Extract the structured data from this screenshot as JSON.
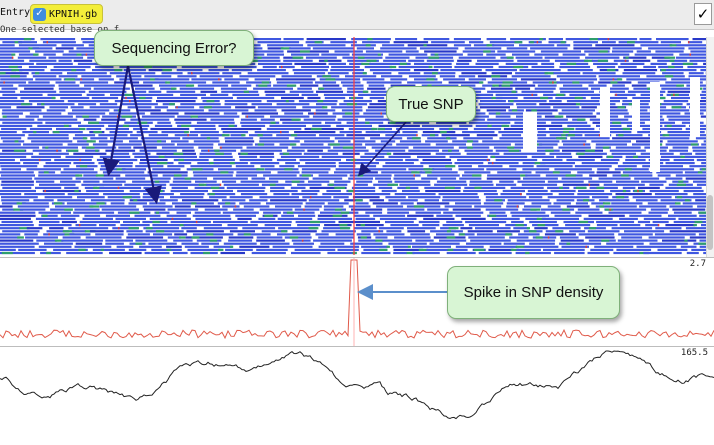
{
  "toolbar": {
    "entry_label": "Entry:",
    "entry_file": "KPNIH.gb",
    "checkbox_checked": true,
    "tick_mark": "✓"
  },
  "status": {
    "text": "One selected base on forward strand"
  },
  "read_panel": {
    "colors": {
      "read": "#3f57e0",
      "read_dark": "#2838c8",
      "mismatch_green": "#2e9e6c",
      "mismatch_red": "#d93b3b",
      "snp_line": "#ff3b3b"
    }
  },
  "snp_panel": {
    "max_label": "2.7",
    "line_color": "#e05a4a"
  },
  "gc_panel": {
    "max_label": "165.5",
    "line_color": "#222222"
  },
  "callouts": {
    "sequencing_error": "Sequencing Error?",
    "true_snp": "True SNP",
    "spike": "Spike in SNP density"
  },
  "arrow_colors": {
    "dark_arrow": "#1a1a7a",
    "blue_arrow": "#5b8fcb"
  }
}
